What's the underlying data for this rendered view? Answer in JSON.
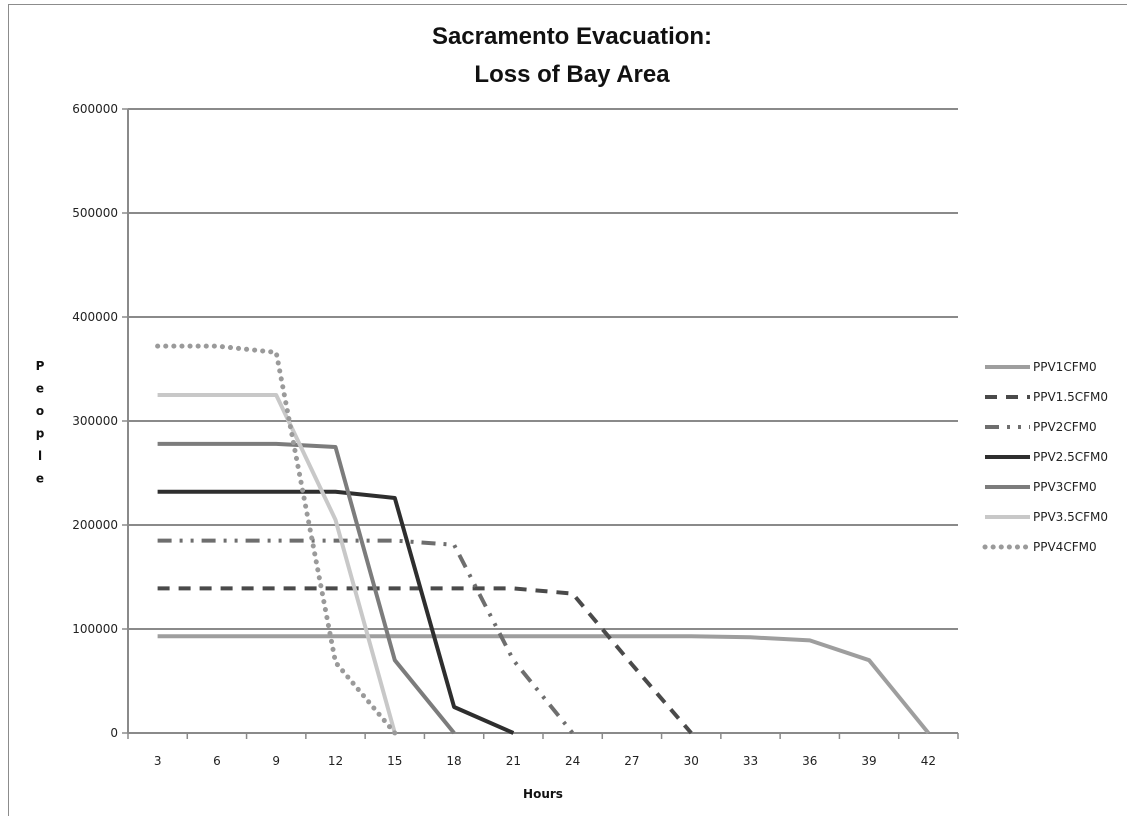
{
  "chart_data": {
    "type": "line",
    "title": [
      "Sacramento Evacuation:",
      "Loss of Bay Area"
    ],
    "xlabel": "Hours",
    "ylabel": "People",
    "x": [
      3,
      6,
      9,
      12,
      15,
      18,
      21,
      24,
      27,
      30,
      33,
      36,
      39,
      42
    ],
    "xticks": [
      "3",
      "6",
      "9",
      "12",
      "15",
      "18",
      "21",
      "24",
      "27",
      "30",
      "33",
      "36",
      "39",
      "42"
    ],
    "yticks": [
      "0",
      "100000",
      "200000",
      "300000",
      "400000",
      "500000",
      "600000"
    ],
    "ylim": [
      0,
      600000
    ],
    "grid": "horizontal",
    "legend_position": "right",
    "series": [
      {
        "name": "PPV1CFM0",
        "color": "#9e9e9e",
        "dash": "solid",
        "points": [
          [
            3,
            93000
          ],
          [
            6,
            93000
          ],
          [
            9,
            93000
          ],
          [
            12,
            93000
          ],
          [
            15,
            93000
          ],
          [
            18,
            93000
          ],
          [
            21,
            93000
          ],
          [
            24,
            93000
          ],
          [
            27,
            93000
          ],
          [
            30,
            93000
          ],
          [
            33,
            92000
          ],
          [
            36,
            89000
          ],
          [
            39,
            70000
          ],
          [
            42,
            0
          ]
        ]
      },
      {
        "name": "PPV1.5CFM0",
        "color": "#4a4a4a",
        "dash": "dash",
        "points": [
          [
            3,
            139000
          ],
          [
            6,
            139000
          ],
          [
            9,
            139000
          ],
          [
            12,
            139000
          ],
          [
            15,
            139000
          ],
          [
            18,
            139000
          ],
          [
            21,
            139000
          ],
          [
            24,
            134000
          ],
          [
            27,
            66000
          ],
          [
            30,
            0
          ]
        ]
      },
      {
        "name": "PPV2CFM0",
        "color": "#6e6e6e",
        "dash": "dashdotdot",
        "points": [
          [
            3,
            185000
          ],
          [
            6,
            185000
          ],
          [
            9,
            185000
          ],
          [
            12,
            185000
          ],
          [
            15,
            185000
          ],
          [
            18,
            181000
          ],
          [
            21,
            70000
          ],
          [
            24,
            0
          ]
        ]
      },
      {
        "name": "PPV2.5CFM0",
        "color": "#2e2e2e",
        "dash": "solid",
        "points": [
          [
            3,
            232000
          ],
          [
            6,
            232000
          ],
          [
            9,
            232000
          ],
          [
            12,
            232000
          ],
          [
            15,
            226000
          ],
          [
            18,
            25000
          ],
          [
            21,
            0
          ]
        ]
      },
      {
        "name": "PPV3CFM0",
        "color": "#7c7c7c",
        "dash": "solid",
        "points": [
          [
            3,
            278000
          ],
          [
            6,
            278000
          ],
          [
            9,
            278000
          ],
          [
            12,
            275000
          ],
          [
            15,
            70000
          ],
          [
            18,
            0
          ]
        ]
      },
      {
        "name": "PPV3.5CFM0",
        "color": "#c8c8c8",
        "dash": "solid",
        "points": [
          [
            3,
            325000
          ],
          [
            6,
            325000
          ],
          [
            9,
            325000
          ],
          [
            12,
            205000
          ],
          [
            15,
            0
          ]
        ]
      },
      {
        "name": "PPV4CFM0",
        "color": "#9a9a9a",
        "dash": "dot",
        "points": [
          [
            3,
            372000
          ],
          [
            6,
            372000
          ],
          [
            9,
            366000
          ],
          [
            12,
            68000
          ],
          [
            15,
            0
          ]
        ]
      }
    ]
  }
}
